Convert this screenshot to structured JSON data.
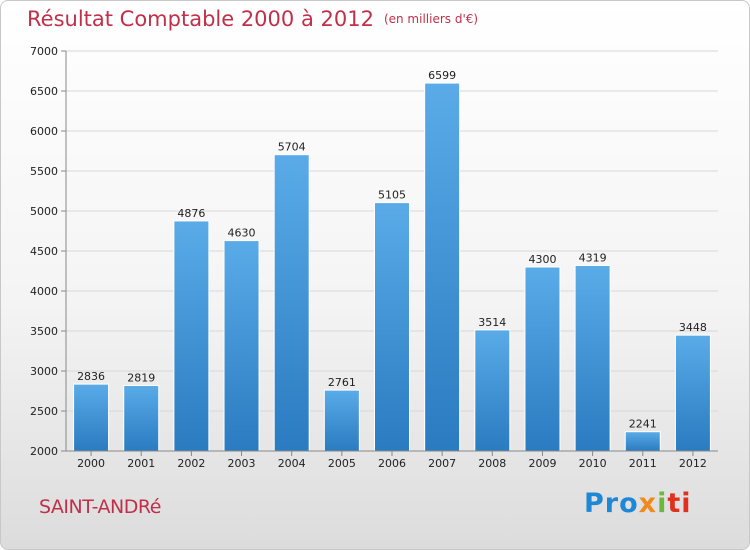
{
  "header": {
    "title": "Résultat Comptable 2000 à 2012",
    "subtitle": "(en milliers d'€)"
  },
  "footer": {
    "town": "SAINT-ANDRé",
    "logo": {
      "p1": "Pro",
      "p2": "x",
      "p3": "i",
      "p4": "ti"
    }
  },
  "colors": {
    "bar_top": "#5aabe8",
    "bar_bottom": "#2a7bc0",
    "title": "#c0304a"
  },
  "chart_data": {
    "type": "bar",
    "title": "Résultat Comptable 2000 à 2012",
    "subtitle": "(en milliers d'€)",
    "categories": [
      "2000",
      "2001",
      "2002",
      "2003",
      "2004",
      "2005",
      "2006",
      "2007",
      "2008",
      "2009",
      "2010",
      "2011",
      "2012"
    ],
    "values": [
      2836,
      2819,
      4876,
      4630,
      5704,
      2761,
      5105,
      6599,
      3514,
      4300,
      4319,
      2241,
      3448
    ],
    "ylim": [
      2000,
      7000
    ],
    "yticks": [
      2000,
      2500,
      3000,
      3500,
      4000,
      4500,
      5000,
      5500,
      6000,
      6500,
      7000
    ],
    "grid": true,
    "xlabel": "",
    "ylabel": ""
  }
}
